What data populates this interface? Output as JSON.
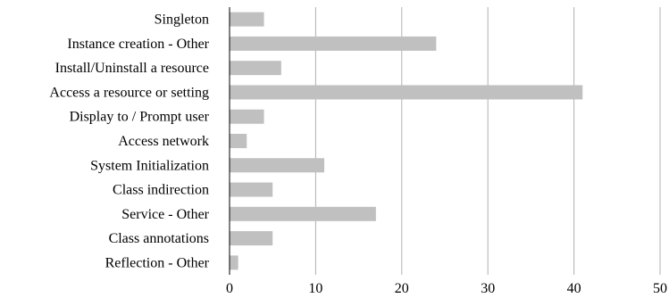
{
  "chart_data": {
    "type": "bar",
    "orientation": "horizontal",
    "categories": [
      "Singleton",
      "Instance creation - Other",
      "Install/Uninstall a resource",
      "Access a resource or setting",
      "Display to / Prompt user",
      "Access network",
      "System Initialization",
      "Class indirection",
      "Service - Other",
      "Class annotations",
      "Reflection - Other"
    ],
    "values": [
      4,
      24,
      6,
      41,
      4,
      2,
      11,
      5,
      17,
      5,
      1
    ],
    "xlim": [
      0,
      50
    ],
    "xticks": [
      "0",
      "10",
      "20",
      "30",
      "40",
      "50"
    ],
    "grid": "vertical",
    "bar_color": "#c0c0c0",
    "title": "",
    "xlabel": "",
    "ylabel": ""
  }
}
